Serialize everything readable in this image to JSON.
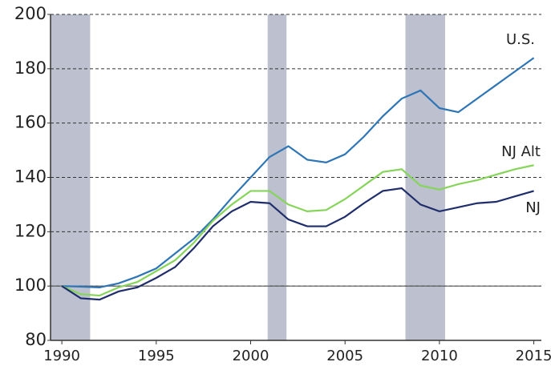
{
  "chart_data": {
    "type": "line",
    "x": [
      1990,
      1991,
      1992,
      1993,
      1994,
      1995,
      1996,
      1997,
      1998,
      1999,
      2000,
      2001,
      2002,
      2003,
      2004,
      2005,
      2006,
      2007,
      2008,
      2009,
      2010,
      2011,
      2012,
      2013,
      2014,
      2015
    ],
    "series": [
      {
        "name": "U.S.",
        "color": "#2e75b6",
        "values": [
          100,
          99.8,
          99.5,
          101,
          103.5,
          106.5,
          112,
          117.5,
          124.5,
          132.5,
          140,
          147.5,
          151.5,
          146.5,
          145.5,
          148.5,
          155,
          162.5,
          169,
          172,
          165.5,
          164,
          169,
          174,
          179,
          184
        ]
      },
      {
        "name": "NJ Alt",
        "color": "#86d45a",
        "values": [
          100,
          97,
          96.5,
          99.5,
          101.5,
          105.5,
          109.5,
          116,
          124,
          130,
          135,
          135,
          130,
          127.5,
          128,
          132,
          137,
          142,
          143,
          137,
          135.5,
          137.5,
          139,
          141,
          143,
          144.5
        ]
      },
      {
        "name": "NJ",
        "color": "#1f2d6b",
        "values": [
          100,
          95.5,
          95,
          98,
          99.5,
          103,
          107,
          114,
          122,
          127.5,
          131,
          130.5,
          124.5,
          122,
          122,
          125.5,
          130.5,
          135,
          136,
          130,
          127.5,
          129,
          130.5,
          131,
          133,
          135
        ]
      }
    ],
    "shaded": [
      [
        1989.4,
        1991.5
      ],
      [
        2000.9,
        2001.9
      ],
      [
        2008.2,
        2010.3
      ]
    ],
    "reference_line": 100,
    "xlim": [
      1989.4,
      2015.4
    ],
    "xticks": [
      1990,
      1995,
      2000,
      2005,
      2010,
      2015
    ],
    "ylim": [
      80,
      200
    ],
    "yticks": [
      80,
      100,
      120,
      140,
      160,
      180,
      200
    ],
    "grid": true
  }
}
